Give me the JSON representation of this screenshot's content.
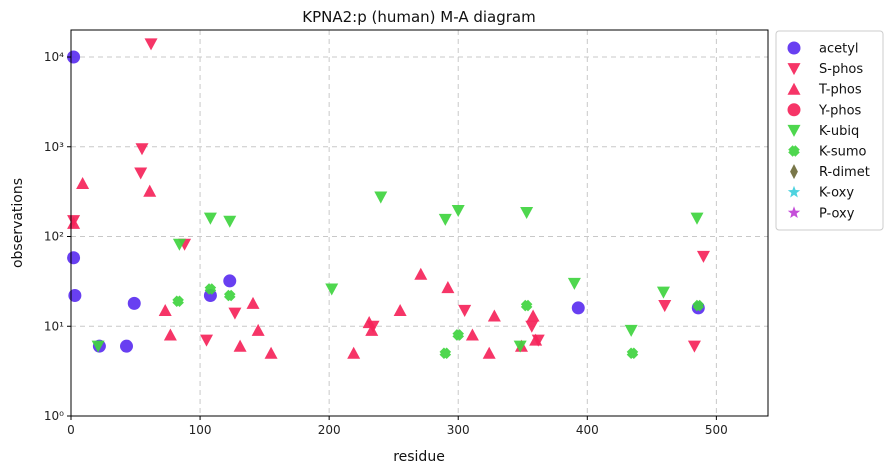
{
  "chart_data": {
    "type": "scatter",
    "title": "KPNA2:p (human) M-A diagram",
    "xlabel": "residue",
    "ylabel": "observations",
    "xlim": [
      0,
      540
    ],
    "ylim": [
      1,
      20000
    ],
    "yscale": "log",
    "x_ticks": [
      0,
      100,
      200,
      300,
      400,
      500
    ],
    "y_ticks": [
      {
        "value": 1,
        "label": "10⁰"
      },
      {
        "value": 10,
        "label": "10¹"
      },
      {
        "value": 100,
        "label": "10²"
      },
      {
        "value": 1000,
        "label": "10³"
      },
      {
        "value": 10000,
        "label": "10⁴"
      }
    ],
    "grid": true,
    "legend_position": "outside-right",
    "series": [
      {
        "name": "acetyl",
        "marker": "circle",
        "color": "#5b2ff0",
        "points": [
          [
            2,
            10000
          ],
          [
            2,
            58
          ],
          [
            3,
            22
          ],
          [
            22,
            6
          ],
          [
            43,
            6
          ],
          [
            49,
            18
          ],
          [
            108,
            22
          ],
          [
            123,
            32
          ],
          [
            393,
            16
          ],
          [
            486,
            16
          ]
        ]
      },
      {
        "name": "S-phos",
        "marker": "triangle-down",
        "color": "#f5245a",
        "points": [
          [
            2,
            150
          ],
          [
            55,
            950
          ],
          [
            54,
            510
          ],
          [
            62,
            14000
          ],
          [
            88,
            82
          ],
          [
            105,
            7
          ],
          [
            127,
            14
          ],
          [
            234,
            10
          ],
          [
            305,
            15
          ],
          [
            357,
            10
          ],
          [
            362,
            7
          ],
          [
            460,
            17
          ],
          [
            483,
            6
          ],
          [
            490,
            60
          ]
        ]
      },
      {
        "name": "T-phos",
        "marker": "triangle-up",
        "color": "#f5245a",
        "points": [
          [
            2,
            140
          ],
          [
            9,
            390
          ],
          [
            61,
            320
          ],
          [
            73,
            15
          ],
          [
            77,
            8
          ],
          [
            131,
            6
          ],
          [
            141,
            18
          ],
          [
            145,
            9
          ],
          [
            155,
            5
          ],
          [
            219,
            5
          ],
          [
            231,
            11
          ],
          [
            233,
            9
          ],
          [
            255,
            15
          ],
          [
            271,
            38
          ],
          [
            292,
            27
          ],
          [
            311,
            8
          ],
          [
            324,
            5
          ],
          [
            328,
            13
          ],
          [
            349,
            6
          ],
          [
            358,
            13
          ],
          [
            360,
            7
          ]
        ]
      },
      {
        "name": "Y-phos",
        "marker": "circle",
        "color": "#f5245a",
        "points": []
      },
      {
        "name": "K-ubiq",
        "marker": "triangle-down",
        "color": "#3fd43f",
        "points": [
          [
            21,
            6
          ],
          [
            84,
            82
          ],
          [
            108,
            160
          ],
          [
            123,
            148
          ],
          [
            202,
            26
          ],
          [
            240,
            275
          ],
          [
            290,
            155
          ],
          [
            300,
            195
          ],
          [
            353,
            185
          ],
          [
            348,
            6
          ],
          [
            390,
            30
          ],
          [
            434,
            9
          ],
          [
            459,
            24
          ],
          [
            485,
            160
          ]
        ]
      },
      {
        "name": "K-sumo",
        "marker": "x",
        "color": "#3fd43f",
        "points": [
          [
            83,
            19
          ],
          [
            108,
            26
          ],
          [
            123,
            22
          ],
          [
            290,
            5
          ],
          [
            300,
            8
          ],
          [
            353,
            17
          ],
          [
            435,
            5
          ],
          [
            486,
            17
          ]
        ]
      },
      {
        "name": "R-dimet",
        "marker": "diamond",
        "color": "#6e6b3a",
        "points": []
      },
      {
        "name": "K-oxy",
        "marker": "star",
        "color": "#3fcfdc",
        "points": []
      },
      {
        "name": "P-oxy",
        "marker": "star",
        "color": "#c03fd6",
        "points": []
      }
    ]
  }
}
